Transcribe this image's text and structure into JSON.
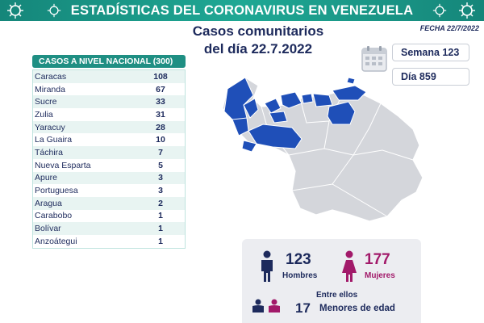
{
  "header": {
    "title": "ESTADÍSTICAS DEL CORONAVIRUS EN VENEZUELA",
    "date": "FECHA 22/7/2022"
  },
  "subtitle": {
    "line1": "Casos comunitarios",
    "line2": "del día 22.7.2022"
  },
  "info": {
    "week": "Semana 123",
    "day": "Día 859"
  },
  "table": {
    "header": "CASOS A NIVEL NACIONAL (300)",
    "rows": [
      {
        "name": "Caracas",
        "value": "108"
      },
      {
        "name": "Miranda",
        "value": "67"
      },
      {
        "name": "Sucre",
        "value": "33"
      },
      {
        "name": "Zulia",
        "value": "31"
      },
      {
        "name": "Yaracuy",
        "value": "28"
      },
      {
        "name": "La Guaira",
        "value": "10"
      },
      {
        "name": "Táchira",
        "value": "7"
      },
      {
        "name": "Nueva Esparta",
        "value": "5"
      },
      {
        "name": "Apure",
        "value": "3"
      },
      {
        "name": "Portuguesa",
        "value": "3"
      },
      {
        "name": "Aragua",
        "value": "2"
      },
      {
        "name": "Carabobo",
        "value": "1"
      },
      {
        "name": "Bolívar",
        "value": "1"
      },
      {
        "name": "Anzoátegui",
        "value": "1"
      }
    ]
  },
  "demographics": {
    "men_count": "123",
    "men_label": "Hombres",
    "women_count": "177",
    "women_label": "Mujeres",
    "among_label": "Entre ellos",
    "minors_count": "17",
    "minors_label": "Menores de edad"
  },
  "colors": {
    "banner": "#1a9a8c",
    "navy": "#1d2a5c",
    "map_highlight": "#1f4fb8",
    "map_base": "#d4d6db",
    "women": "#a21a6a"
  },
  "icons": {
    "virus": "virus-icon",
    "calendar": "calendar-icon",
    "man": "man-icon",
    "woman": "woman-icon",
    "children": "children-icon"
  }
}
